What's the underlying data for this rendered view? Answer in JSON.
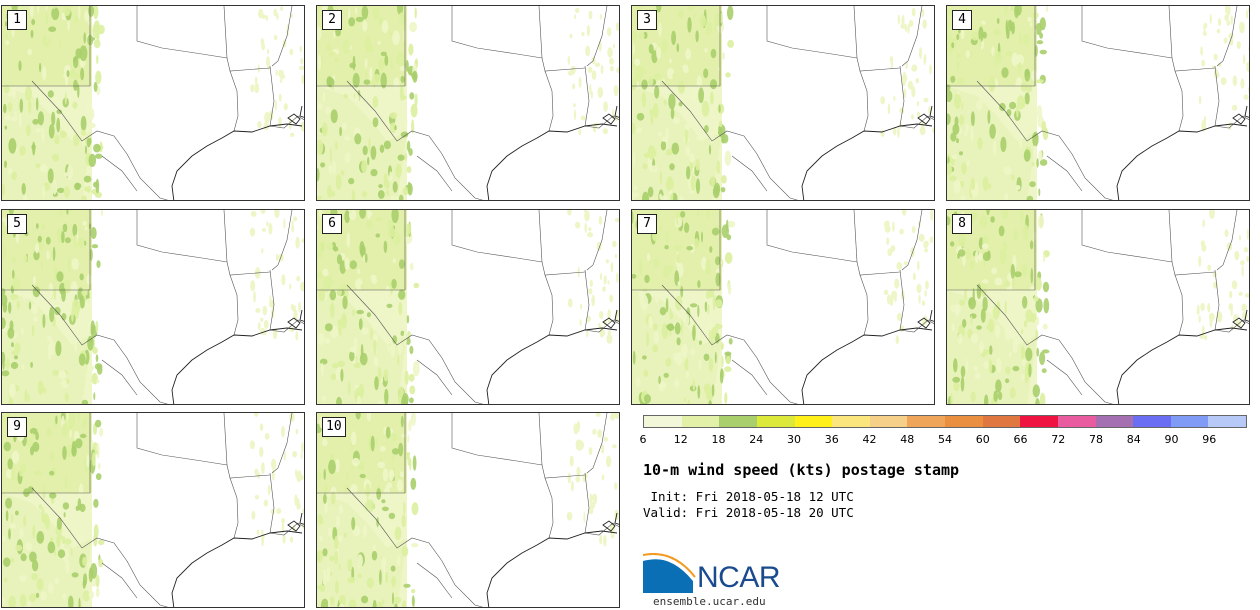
{
  "panels": [
    {
      "label": "1"
    },
    {
      "label": "2"
    },
    {
      "label": "3"
    },
    {
      "label": "4"
    },
    {
      "label": "5"
    },
    {
      "label": "6"
    },
    {
      "label": "7"
    },
    {
      "label": "8"
    },
    {
      "label": "9"
    },
    {
      "label": "10"
    }
  ],
  "colorbar": {
    "colors": [
      "#f2f7d9",
      "#e2f0a8",
      "#a8cf6c",
      "#dde93a",
      "#fff01a",
      "#fbe57d",
      "#f6cf88",
      "#efa65a",
      "#ea8e40",
      "#e07640",
      "#ee1340",
      "#e95da0",
      "#a470b2",
      "#6b6ef2",
      "#7f9bf6",
      "#b7c9f7"
    ],
    "tick_labels": [
      "6",
      "12",
      "18",
      "24",
      "30",
      "36",
      "42",
      "48",
      "54",
      "60",
      "66",
      "72",
      "78",
      "84",
      "90",
      "96"
    ]
  },
  "title": "10-m wind speed (kts) postage stamp",
  "init_line": " Init: Fri 2018-05-18 12 UTC",
  "valid_line": "Valid: Fri 2018-05-18 20 UTC",
  "logo": {
    "text": "NCAR",
    "url": "ensemble.ucar.edu",
    "color": "#1a4b8f"
  }
}
